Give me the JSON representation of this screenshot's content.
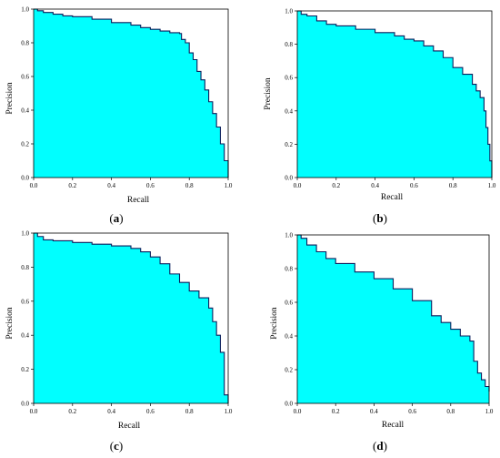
{
  "figure": {
    "fill_color": "#00FFFF",
    "line_color": "#0B1F5C",
    "frame_color": "#000000"
  },
  "chart_data": [
    {
      "type": "area",
      "panel_label": "a",
      "xlabel": "Recall",
      "ylabel": "Precision",
      "xlim": [
        0,
        1
      ],
      "ylim": [
        0,
        1
      ],
      "xticks": [
        "0.0",
        "0.2",
        "0.4",
        "0.6",
        "0.8",
        "1.0"
      ],
      "yticks": [
        "0.0",
        "0.2",
        "0.4",
        "0.6",
        "0.8",
        "1.0"
      ],
      "grid": false,
      "x": [
        0,
        0.02,
        0.05,
        0.1,
        0.15,
        0.2,
        0.3,
        0.4,
        0.5,
        0.55,
        0.6,
        0.65,
        0.7,
        0.75,
        0.76,
        0.78,
        0.8,
        0.82,
        0.84,
        0.86,
        0.88,
        0.9,
        0.92,
        0.94,
        0.96,
        0.98,
        1.0
      ],
      "y": [
        1.0,
        0.99,
        0.98,
        0.97,
        0.96,
        0.955,
        0.94,
        0.92,
        0.905,
        0.89,
        0.88,
        0.87,
        0.86,
        0.855,
        0.82,
        0.8,
        0.74,
        0.7,
        0.63,
        0.58,
        0.52,
        0.45,
        0.38,
        0.3,
        0.2,
        0.1,
        0.0
      ]
    },
    {
      "type": "area",
      "panel_label": "b",
      "xlabel": "Recall",
      "ylabel": "Precision",
      "xlim": [
        0,
        1
      ],
      "ylim": [
        0,
        1
      ],
      "xticks": [
        "0.0",
        "0.2",
        "0.4",
        "0.6",
        "0.8",
        "1.0"
      ],
      "yticks": [
        "0.0",
        "0.2",
        "0.4",
        "0.6",
        "0.8",
        "1.0"
      ],
      "grid": false,
      "x": [
        0,
        0.02,
        0.05,
        0.1,
        0.15,
        0.2,
        0.3,
        0.4,
        0.5,
        0.55,
        0.6,
        0.65,
        0.7,
        0.75,
        0.8,
        0.85,
        0.9,
        0.92,
        0.94,
        0.96,
        0.97,
        0.98,
        0.99,
        1.0
      ],
      "y": [
        1.0,
        0.98,
        0.97,
        0.94,
        0.92,
        0.91,
        0.89,
        0.87,
        0.85,
        0.83,
        0.82,
        0.79,
        0.76,
        0.72,
        0.66,
        0.62,
        0.56,
        0.52,
        0.48,
        0.4,
        0.3,
        0.2,
        0.1,
        0.0
      ]
    },
    {
      "type": "area",
      "panel_label": "c",
      "xlabel": "Recall",
      "ylabel": "Precision",
      "xlim": [
        0,
        1
      ],
      "ylim": [
        0,
        1
      ],
      "xticks": [
        "0.0",
        "0.2",
        "0.4",
        "0.6",
        "0.8",
        "1.0"
      ],
      "yticks": [
        "0.0",
        "0.2",
        "0.4",
        "0.6",
        "0.8",
        "1.0"
      ],
      "grid": false,
      "x": [
        0,
        0.02,
        0.05,
        0.1,
        0.2,
        0.3,
        0.4,
        0.5,
        0.55,
        0.6,
        0.65,
        0.7,
        0.75,
        0.8,
        0.85,
        0.9,
        0.92,
        0.94,
        0.96,
        0.98,
        1.0
      ],
      "y": [
        1.0,
        0.98,
        0.96,
        0.955,
        0.945,
        0.935,
        0.925,
        0.91,
        0.89,
        0.86,
        0.82,
        0.76,
        0.71,
        0.66,
        0.62,
        0.56,
        0.48,
        0.4,
        0.3,
        0.05,
        0.0
      ]
    },
    {
      "type": "area",
      "panel_label": "d",
      "xlabel": "Recall",
      "ylabel": "Precision",
      "xlim": [
        0,
        1
      ],
      "ylim": [
        0,
        1
      ],
      "xticks": [
        "0.0",
        "0.2",
        "0.4",
        "0.6",
        "0.8",
        "1.0"
      ],
      "yticks": [
        "0.0",
        "0.2",
        "0.4",
        "0.6",
        "0.8",
        "1.0"
      ],
      "grid": false,
      "x": [
        0,
        0.02,
        0.05,
        0.1,
        0.15,
        0.2,
        0.3,
        0.4,
        0.5,
        0.6,
        0.7,
        0.75,
        0.8,
        0.85,
        0.9,
        0.92,
        0.94,
        0.96,
        0.98,
        1.0
      ],
      "y": [
        1.0,
        0.98,
        0.94,
        0.9,
        0.86,
        0.83,
        0.78,
        0.74,
        0.68,
        0.61,
        0.52,
        0.48,
        0.44,
        0.4,
        0.37,
        0.25,
        0.18,
        0.14,
        0.1,
        0.07
      ]
    }
  ]
}
